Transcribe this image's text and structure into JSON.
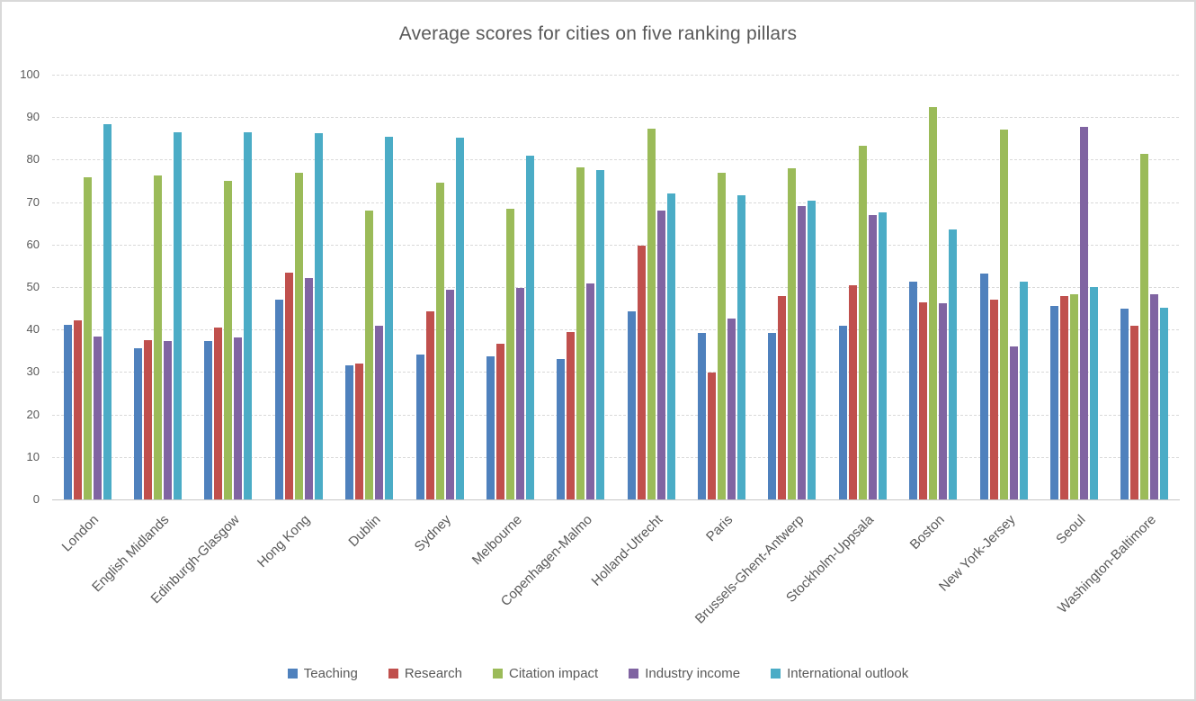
{
  "title": "Average scores for cities on five ranking pillars",
  "axis": {
    "y_ticks": [
      0,
      10,
      20,
      30,
      40,
      50,
      60,
      70,
      80,
      90,
      100
    ],
    "y_max": 100
  },
  "colors": {
    "teaching": "#4F81BD",
    "research": "#C0504D",
    "citation_impact": "#9BBB59",
    "industry_income": "#8064A2",
    "international_outlook": "#4BACC6",
    "text": "#595959",
    "gridline": "#D9D9D9"
  },
  "chart_data": {
    "type": "bar",
    "title": "Average scores for cities on five ranking pillars",
    "categories": [
      "London",
      "English Midlands",
      "Edinburgh-Glasgow",
      "Hong Kong",
      "Dublin",
      "Sydney",
      "Melbourne",
      "Copenhagen-Malmo",
      "Holland-Utrecht",
      "Paris",
      "Brussels-Ghent-Antwerp",
      "Stockholm-Uppsala",
      "Boston",
      "New York-Jersey",
      "Seoul",
      "Washington-Baltimore"
    ],
    "series": [
      {
        "name": "Teaching",
        "color": "#4F81BD",
        "values": [
          41.1,
          35.6,
          37.2,
          47.1,
          31.5,
          34.2,
          33.8,
          33.0,
          44.2,
          39.2,
          39.2,
          41.0,
          51.3,
          53.1,
          45.6,
          44.9
        ]
      },
      {
        "name": "Research",
        "color": "#C0504D",
        "values": [
          42.1,
          37.5,
          40.5,
          53.5,
          32.1,
          44.2,
          36.7,
          39.5,
          59.8,
          29.8,
          47.8,
          50.5,
          46.5,
          47.0,
          47.8,
          40.8
        ]
      },
      {
        "name": "Citation impact",
        "color": "#9BBB59",
        "values": [
          75.9,
          76.3,
          75.1,
          76.9,
          68.1,
          74.6,
          68.4,
          78.2,
          87.4,
          76.9,
          77.9,
          83.2,
          92.4,
          87.0,
          48.4,
          81.4
        ]
      },
      {
        "name": "Industry income",
        "color": "#8064A2",
        "values": [
          38.4,
          37.3,
          38.2,
          52.2,
          40.8,
          49.3,
          49.9,
          50.9,
          68.1,
          42.5,
          69.0,
          66.9,
          46.1,
          36.1,
          87.8,
          48.3
        ]
      },
      {
        "name": "International outlook",
        "color": "#4BACC6",
        "values": [
          88.3,
          86.5,
          86.5,
          86.3,
          85.3,
          85.1,
          80.9,
          77.6,
          72.1,
          71.7,
          70.4,
          67.5,
          63.5,
          51.3,
          50.0,
          45.1
        ]
      }
    ],
    "ylim": [
      0,
      100
    ],
    "grid": true,
    "legend_position": "bottom"
  }
}
